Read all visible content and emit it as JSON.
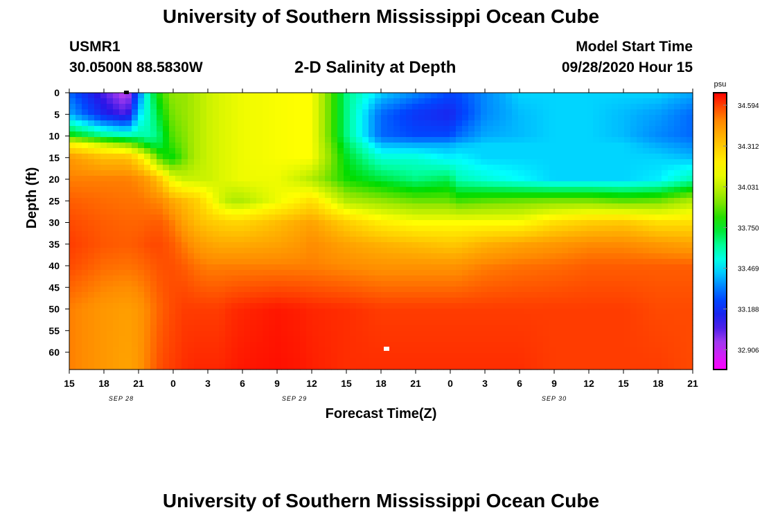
{
  "header": {
    "title": "University of Southern Mississippi Ocean Cube",
    "station": "USMR1",
    "coordinates": "30.0500N 88.5830W",
    "subtitle": "2-D Salinity at Depth",
    "model_start_label": "Model Start Time",
    "model_start_value": "09/28/2020 Hour 15"
  },
  "footer": {
    "title": "University of Southern Mississippi Ocean Cube"
  },
  "chart_data": {
    "type": "heatmap",
    "title": "2-D Salinity at Depth",
    "xlabel": "Forecast Time(Z)",
    "ylabel": "Depth (ft)",
    "x_tick_labels": [
      "15",
      "18",
      "21",
      "0",
      "3",
      "6",
      "9",
      "12",
      "15",
      "18",
      "21",
      "0",
      "3",
      "6",
      "9",
      "12",
      "15",
      "18",
      "21"
    ],
    "date_labels": [
      {
        "text": "SEP 28",
        "tick_index": 1.5
      },
      {
        "text": "SEP 29",
        "tick_index": 6.5
      },
      {
        "text": "SEP 30",
        "tick_index": 14
      }
    ],
    "x_range_hours": [
      0,
      54
    ],
    "y_range_ft": [
      0,
      64
    ],
    "y_ticks": [
      0,
      5,
      10,
      15,
      20,
      25,
      30,
      35,
      40,
      45,
      50,
      55,
      60
    ],
    "colorbar": {
      "unit": "psu",
      "min": 32.77,
      "max": 34.68,
      "tick_values": [
        "34.594",
        "34.312",
        "34.031",
        "33.750",
        "33.469",
        "33.188",
        "32.906"
      ]
    },
    "field": {
      "hours": [
        0,
        3,
        5,
        6,
        7,
        8,
        9,
        10,
        11,
        12,
        13,
        14,
        15,
        18,
        20,
        21,
        24,
        27,
        30,
        33,
        33.5,
        36,
        39,
        42,
        45,
        48,
        51,
        54
      ],
      "depths": [
        0,
        5,
        10,
        12,
        15,
        20,
        25,
        30,
        35,
        40,
        50,
        64
      ],
      "salinity_psu": [
        [
          33.3,
          33.05,
          32.9,
          33.3,
          33.65,
          33.85,
          33.95,
          33.95,
          34.0,
          34.05,
          34.08,
          34.1,
          34.12,
          34.14,
          34.15,
          34.15,
          33.65,
          33.45,
          33.35,
          33.25,
          33.25,
          33.35,
          33.45,
          33.45,
          33.45,
          33.45,
          33.45,
          33.4
        ],
        [
          33.4,
          33.15,
          33.05,
          33.45,
          33.6,
          33.78,
          33.92,
          33.95,
          34.0,
          34.05,
          34.08,
          34.1,
          34.12,
          34.14,
          34.15,
          34.15,
          33.65,
          33.3,
          33.2,
          33.15,
          33.2,
          33.35,
          33.42,
          33.45,
          33.45,
          33.42,
          33.38,
          33.3
        ],
        [
          33.8,
          33.65,
          33.6,
          33.62,
          33.6,
          33.7,
          33.88,
          33.93,
          34.0,
          34.05,
          34.08,
          34.1,
          34.12,
          34.14,
          34.15,
          34.15,
          33.65,
          33.3,
          33.25,
          33.25,
          33.3,
          33.4,
          33.42,
          33.45,
          33.45,
          33.42,
          33.35,
          33.3
        ],
        [
          34.2,
          34.05,
          33.95,
          33.85,
          33.72,
          33.72,
          33.85,
          33.92,
          34.0,
          34.05,
          34.08,
          34.1,
          34.12,
          34.14,
          34.15,
          34.15,
          33.7,
          33.42,
          33.4,
          33.4,
          33.42,
          33.45,
          33.45,
          33.45,
          33.45,
          33.45,
          33.4,
          33.35
        ],
        [
          34.45,
          34.35,
          34.35,
          34.25,
          34.05,
          33.82,
          33.78,
          33.9,
          34.0,
          34.05,
          34.08,
          34.1,
          34.12,
          34.14,
          34.15,
          34.15,
          33.75,
          33.55,
          33.55,
          33.48,
          33.5,
          33.45,
          33.45,
          33.45,
          33.45,
          33.45,
          33.45,
          33.42
        ],
        [
          34.5,
          34.5,
          34.5,
          34.48,
          34.42,
          34.3,
          34.1,
          34.05,
          34.05,
          34.05,
          34.08,
          34.1,
          34.12,
          34.12,
          34.05,
          34.0,
          33.8,
          33.72,
          33.65,
          33.7,
          33.6,
          33.55,
          33.5,
          33.45,
          33.45,
          33.45,
          33.48,
          33.6
        ],
        [
          34.55,
          34.53,
          34.52,
          34.52,
          34.5,
          34.48,
          34.4,
          34.35,
          34.3,
          34.2,
          34.08,
          34.0,
          34.0,
          34.12,
          34.2,
          34.25,
          34.0,
          33.95,
          33.9,
          33.9,
          33.85,
          33.88,
          33.9,
          33.92,
          33.92,
          33.88,
          33.9,
          34.0
        ],
        [
          34.58,
          34.55,
          34.54,
          34.54,
          34.55,
          34.55,
          34.5,
          34.42,
          34.36,
          34.32,
          34.3,
          34.28,
          34.28,
          34.35,
          34.4,
          34.42,
          34.3,
          34.2,
          34.15,
          34.15,
          34.15,
          34.15,
          34.15,
          34.25,
          34.3,
          34.32,
          34.25,
          34.25
        ],
        [
          34.6,
          34.56,
          34.55,
          34.56,
          34.58,
          34.58,
          34.55,
          34.5,
          34.45,
          34.42,
          34.4,
          34.4,
          34.4,
          34.42,
          34.45,
          34.48,
          34.42,
          34.38,
          34.35,
          34.32,
          34.32,
          34.38,
          34.42,
          34.45,
          34.48,
          34.48,
          34.45,
          34.42
        ],
        [
          34.58,
          34.53,
          34.52,
          34.53,
          34.55,
          34.57,
          34.57,
          34.55,
          34.52,
          34.5,
          34.5,
          34.5,
          34.5,
          34.5,
          34.5,
          34.5,
          34.48,
          34.46,
          34.46,
          34.46,
          34.46,
          34.5,
          34.52,
          34.53,
          34.55,
          34.55,
          34.55,
          34.55
        ],
        [
          34.5,
          34.45,
          34.43,
          34.45,
          34.5,
          34.55,
          34.58,
          34.6,
          34.6,
          34.6,
          34.6,
          34.62,
          34.63,
          34.65,
          34.64,
          34.63,
          34.62,
          34.6,
          34.6,
          34.6,
          34.6,
          34.6,
          34.6,
          34.6,
          34.6,
          34.6,
          34.58,
          34.58
        ],
        [
          34.5,
          34.45,
          34.42,
          34.45,
          34.52,
          34.58,
          34.6,
          34.62,
          34.63,
          34.63,
          34.63,
          34.64,
          34.65,
          34.66,
          34.65,
          34.64,
          34.62,
          34.62,
          34.62,
          34.62,
          34.62,
          34.62,
          34.62,
          34.6,
          34.6,
          34.6,
          34.6,
          34.58
        ]
      ]
    }
  }
}
